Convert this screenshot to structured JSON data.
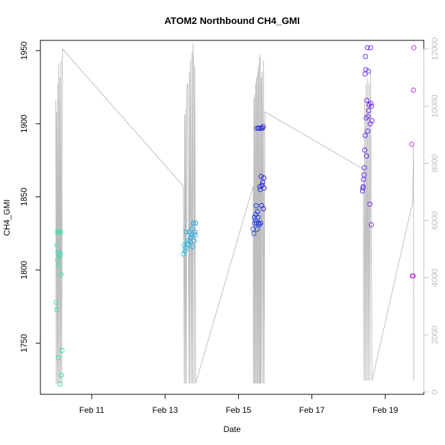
{
  "chart_data": {
    "type": "scatter",
    "title": "ATOM2 Northbound CH4_GMI",
    "xlabel": "Date",
    "ylabel": "CH4_GMI",
    "x_ticks": [
      "Feb 11",
      "Feb 13",
      "Feb 15",
      "Feb 17",
      "Feb 19"
    ],
    "x_tick_values": [
      11,
      13,
      15,
      17,
      19
    ],
    "xlim": [
      9.6,
      20.05
    ],
    "ylim": [
      1715,
      1957
    ],
    "y_ticks": [
      1750,
      1800,
      1850,
      1900,
      1950
    ],
    "y2lim": [
      -80,
      12300
    ],
    "y2_ticks": [
      0,
      2000,
      4000,
      6000,
      8000,
      10000,
      12000
    ],
    "grid": false,
    "colors": {
      "altitude_line": "#bdbdbd",
      "right_axis": "#bdbdbd",
      "point_scale": [
        "#33e3a8",
        "#22b8e0",
        "#2236e0",
        "#5a2cf0",
        "#c62be6"
      ]
    },
    "points": [
      {
        "x": 10.03,
        "y": 1778,
        "c": "#36e6a6"
      },
      {
        "x": 10.04,
        "y": 1773,
        "c": "#36e6a6"
      },
      {
        "x": 10.05,
        "y": 1817,
        "c": "#36e6a6"
      },
      {
        "x": 10.07,
        "y": 1826,
        "c": "#36e4a8"
      },
      {
        "x": 10.07,
        "y": 1807,
        "c": "#36e4a8"
      },
      {
        "x": 10.08,
        "y": 1812,
        "c": "#35e3aa"
      },
      {
        "x": 10.09,
        "y": 1740,
        "c": "#35e3aa"
      },
      {
        "x": 10.1,
        "y": 1803,
        "c": "#35e2ad"
      },
      {
        "x": 10.11,
        "y": 1826,
        "c": "#35e2ad"
      },
      {
        "x": 10.12,
        "y": 1810,
        "c": "#34e1b0"
      },
      {
        "x": 10.13,
        "y": 1722,
        "c": "#34e1b0"
      },
      {
        "x": 10.14,
        "y": 1811,
        "c": "#34e0b3"
      },
      {
        "x": 10.15,
        "y": 1826,
        "c": "#34e0b3"
      },
      {
        "x": 10.16,
        "y": 1797,
        "c": "#33dfb6"
      },
      {
        "x": 10.17,
        "y": 1728,
        "c": "#33dfb6"
      },
      {
        "x": 10.19,
        "y": 1745,
        "c": "#33deb9"
      },
      {
        "x": 13.5,
        "y": 1811,
        "c": "#22c6e2"
      },
      {
        "x": 13.52,
        "y": 1817,
        "c": "#22c4e2"
      },
      {
        "x": 13.54,
        "y": 1813,
        "c": "#22c2e2"
      },
      {
        "x": 13.56,
        "y": 1815,
        "c": "#22c0e2"
      },
      {
        "x": 13.57,
        "y": 1826,
        "c": "#22bee2"
      },
      {
        "x": 13.6,
        "y": 1818,
        "c": "#22bce2"
      },
      {
        "x": 13.62,
        "y": 1820,
        "c": "#22bae2"
      },
      {
        "x": 13.64,
        "y": 1817,
        "c": "#22b8e2"
      },
      {
        "x": 13.66,
        "y": 1826,
        "c": "#22b6e2"
      },
      {
        "x": 13.68,
        "y": 1820,
        "c": "#22b4e2"
      },
      {
        "x": 13.7,
        "y": 1822,
        "c": "#22b2e2"
      },
      {
        "x": 13.72,
        "y": 1824,
        "c": "#22b0e2"
      },
      {
        "x": 13.73,
        "y": 1828,
        "c": "#22aee2"
      },
      {
        "x": 13.75,
        "y": 1816,
        "c": "#22ace2"
      },
      {
        "x": 13.77,
        "y": 1832,
        "c": "#22aae2"
      },
      {
        "x": 13.79,
        "y": 1820,
        "c": "#22a8e2"
      },
      {
        "x": 13.81,
        "y": 1826,
        "c": "#22a6e2"
      },
      {
        "x": 13.82,
        "y": 1824,
        "c": "#22a4e2"
      },
      {
        "x": 13.83,
        "y": 1832,
        "c": "#22a2e2"
      },
      {
        "x": 15.4,
        "y": 1828,
        "c": "#2250e2"
      },
      {
        "x": 15.42,
        "y": 1825,
        "c": "#224ee2"
      },
      {
        "x": 15.43,
        "y": 1836,
        "c": "#224ce2"
      },
      {
        "x": 15.44,
        "y": 1832,
        "c": "#224ae2"
      },
      {
        "x": 15.46,
        "y": 1834,
        "c": "#2248e2"
      },
      {
        "x": 15.47,
        "y": 1838,
        "c": "#2246e2"
      },
      {
        "x": 15.48,
        "y": 1844,
        "c": "#2244e2"
      },
      {
        "x": 15.49,
        "y": 1832,
        "c": "#2242e2"
      },
      {
        "x": 15.5,
        "y": 1897,
        "c": "#2240e2"
      },
      {
        "x": 15.51,
        "y": 1828,
        "c": "#223ee2"
      },
      {
        "x": 15.52,
        "y": 1840,
        "c": "#223ce2"
      },
      {
        "x": 15.53,
        "y": 1836,
        "c": "#223ae2"
      },
      {
        "x": 15.54,
        "y": 1897,
        "c": "#2238e2"
      },
      {
        "x": 15.55,
        "y": 1832,
        "c": "#2236e2"
      },
      {
        "x": 15.56,
        "y": 1831,
        "c": "#2234e2"
      },
      {
        "x": 15.57,
        "y": 1897,
        "c": "#2232e2"
      },
      {
        "x": 15.58,
        "y": 1857,
        "c": "#2230e2"
      },
      {
        "x": 15.59,
        "y": 1855,
        "c": "#222ee2"
      },
      {
        "x": 15.6,
        "y": 1832,
        "c": "#222ce2"
      },
      {
        "x": 15.61,
        "y": 1897,
        "c": "#222ae2"
      },
      {
        "x": 15.62,
        "y": 1864,
        "c": "#2228e2"
      },
      {
        "x": 15.63,
        "y": 1844,
        "c": "#2226e2"
      },
      {
        "x": 15.64,
        "y": 1858,
        "c": "#2424e2"
      },
      {
        "x": 15.65,
        "y": 1897,
        "c": "#2622e2"
      },
      {
        "x": 15.66,
        "y": 1860,
        "c": "#2822e2"
      },
      {
        "x": 15.67,
        "y": 1898,
        "c": "#2a22e2"
      },
      {
        "x": 15.68,
        "y": 1842,
        "c": "#2c22e2"
      },
      {
        "x": 15.69,
        "y": 1863,
        "c": "#2e22e2"
      },
      {
        "x": 15.7,
        "y": 1856,
        "c": "#3022e2"
      },
      {
        "x": 18.38,
        "y": 1854,
        "c": "#5a2cf0"
      },
      {
        "x": 18.39,
        "y": 1856,
        "c": "#5a2cf0"
      },
      {
        "x": 18.4,
        "y": 1857,
        "c": "#5c2cf0"
      },
      {
        "x": 18.41,
        "y": 1862,
        "c": "#5c2cf0"
      },
      {
        "x": 18.42,
        "y": 1865,
        "c": "#5e2cf0"
      },
      {
        "x": 18.43,
        "y": 1870,
        "c": "#5e2cf0"
      },
      {
        "x": 18.44,
        "y": 1882,
        "c": "#602cf0"
      },
      {
        "x": 18.45,
        "y": 1892,
        "c": "#602cf0"
      },
      {
        "x": 18.45,
        "y": 1934,
        "c": "#622cf0"
      },
      {
        "x": 18.46,
        "y": 1946,
        "c": "#622cf0"
      },
      {
        "x": 18.47,
        "y": 1937,
        "c": "#642cf0"
      },
      {
        "x": 18.48,
        "y": 1904,
        "c": "#642cf0"
      },
      {
        "x": 18.49,
        "y": 1878,
        "c": "#662cf0"
      },
      {
        "x": 18.5,
        "y": 1916,
        "c": "#662cf0"
      },
      {
        "x": 18.51,
        "y": 1952,
        "c": "#682cf0"
      },
      {
        "x": 18.52,
        "y": 1895,
        "c": "#682cf0"
      },
      {
        "x": 18.53,
        "y": 1905,
        "c": "#6a2cf0"
      },
      {
        "x": 18.54,
        "y": 1936,
        "c": "#6a2cf0"
      },
      {
        "x": 18.55,
        "y": 1909,
        "c": "#6c2cf0"
      },
      {
        "x": 18.56,
        "y": 1913,
        "c": "#6c2cf0"
      },
      {
        "x": 18.58,
        "y": 1845,
        "c": "#6e2cf0"
      },
      {
        "x": 18.59,
        "y": 1900,
        "c": "#6e2cf0"
      },
      {
        "x": 18.6,
        "y": 1952,
        "c": "#702cf0"
      },
      {
        "x": 18.61,
        "y": 1914,
        "c": "#702cf0"
      },
      {
        "x": 18.62,
        "y": 1831,
        "c": "#722cf0"
      },
      {
        "x": 18.63,
        "y": 1912,
        "c": "#722cf0"
      },
      {
        "x": 18.64,
        "y": 1902,
        "c": "#742cf0"
      },
      {
        "x": 19.72,
        "y": 1886,
        "c": "#c02be8"
      },
      {
        "x": 19.74,
        "y": 1796,
        "c": "#c42be6"
      },
      {
        "x": 19.76,
        "y": 1796,
        "c": "#c62be6"
      },
      {
        "x": 19.77,
        "y": 1923,
        "c": "#c82be6"
      },
      {
        "x": 19.78,
        "y": 1952,
        "c": "#ca2be6"
      }
    ],
    "altitude_series": {
      "name": "",
      "x": [
        10.02,
        10.03,
        10.04,
        10.06,
        10.07,
        10.09,
        10.1,
        10.12,
        10.13,
        10.15,
        10.16,
        10.18,
        10.2,
        13.5,
        13.52,
        13.53,
        13.55,
        13.56,
        13.58,
        13.59,
        13.62,
        13.65,
        13.66,
        13.68,
        13.69,
        13.72,
        13.73,
        13.75,
        13.76,
        13.78,
        13.79,
        13.81,
        13.83,
        15.4,
        15.41,
        15.42,
        15.43,
        15.44,
        15.46,
        15.47,
        15.48,
        15.49,
        15.51,
        15.52,
        15.53,
        15.54,
        15.56,
        15.57,
        15.58,
        15.59,
        15.6,
        15.62,
        15.63,
        15.64,
        15.65,
        15.67,
        15.68,
        15.7,
        15.72,
        18.4,
        18.42,
        18.44,
        18.46,
        18.48,
        18.5,
        18.52,
        18.54,
        18.56,
        18.58,
        18.6,
        18.62,
        18.64,
        19.72,
        19.75,
        19.77,
        19.78
      ],
      "y": [
        10200,
        300,
        9800,
        300,
        10800,
        300,
        11500,
        300,
        11000,
        300,
        11600,
        300,
        12000,
        7200,
        300,
        9700,
        300,
        9900,
        300,
        10700,
        10800,
        300,
        11200,
        300,
        11600,
        300,
        11900,
        300,
        12200,
        11200,
        300,
        11400,
        300,
        7200,
        300,
        10300,
        300,
        10400,
        300,
        10800,
        300,
        11000,
        300,
        11200,
        300,
        11400,
        300,
        11700,
        300,
        11800,
        300,
        11000,
        300,
        11200,
        9800,
        300,
        11600,
        300,
        9800,
        7800,
        400,
        10200,
        400,
        10800,
        400,
        11000,
        400,
        10800,
        400,
        11200,
        5500,
        400,
        6500,
        6600,
        8600,
        400
      ]
    }
  }
}
